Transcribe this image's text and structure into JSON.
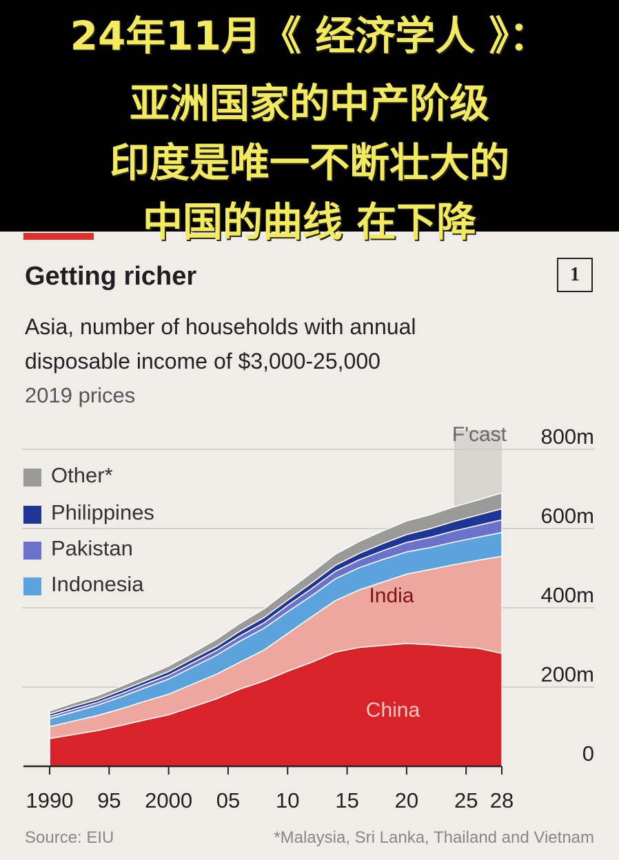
{
  "overlay": {
    "line1": "24年11月《 经济学人 》：",
    "line2": "亚洲国家的中产阶级",
    "line3": "印度是唯一不断壮大的",
    "line4": "中国的曲线   在下降"
  },
  "chart_number": "1",
  "source": "Source: EIU",
  "footnote": "*Malaysia, Sri Lanka, Thailand and Vietnam",
  "colors": {
    "china": "#d9232a",
    "india": "#eea79d",
    "indonesia": "#5aa3dc",
    "pakistan": "#6b72c9",
    "philippines": "#1f3596",
    "other": "#9a9a98",
    "forecast_band": "#d4d2cd",
    "accent_red": "#d9322f"
  },
  "chart_data": {
    "type": "area",
    "stacked": true,
    "title": "Getting richer",
    "subtitle_line1": "Asia, number of households with annual",
    "subtitle_line2": "disposable income of $3,000-25,000",
    "units": "2019 prices",
    "forecast_label": "F'cast",
    "forecast_start": 2024,
    "x": [
      1990,
      1992,
      1994,
      1996,
      1998,
      2000,
      2002,
      2004,
      2006,
      2008,
      2010,
      2012,
      2014,
      2016,
      2018,
      2020,
      2022,
      2024,
      2026,
      2028
    ],
    "xlim": [
      1990,
      2028
    ],
    "ylim": [
      0,
      800
    ],
    "x_ticks": [
      1990,
      1995,
      2000,
      2005,
      2010,
      2015,
      2020,
      2025,
      2028
    ],
    "x_tick_labels": [
      "1990",
      "95",
      "2000",
      "05",
      "10",
      "15",
      "20",
      "25",
      "28"
    ],
    "y_ticks": [
      0,
      200,
      400,
      600,
      800
    ],
    "y_tick_labels": [
      "0",
      "200m",
      "400m",
      "600m",
      "800m"
    ],
    "grid": true,
    "legend_position": "top-left",
    "legend": [
      "Other*",
      "Philippines",
      "Pakistan",
      "Indonesia"
    ],
    "series": [
      {
        "name": "China",
        "values": [
          70,
          80,
          90,
          103,
          117,
          130,
          150,
          170,
          195,
          215,
          240,
          262,
          288,
          300,
          305,
          310,
          307,
          302,
          298,
          285
        ]
      },
      {
        "name": "India",
        "values": [
          30,
          34,
          38,
          42,
          47,
          52,
          57,
          62,
          68,
          78,
          95,
          115,
          130,
          145,
          160,
          175,
          190,
          207,
          222,
          245
        ]
      },
      {
        "name": "Indonesia",
        "values": [
          20,
          23,
          26,
          30,
          34,
          38,
          43,
          48,
          53,
          55,
          55,
          53,
          55,
          56,
          57,
          56,
          55,
          57,
          58,
          60
        ]
      },
      {
        "name": "Pakistan",
        "values": [
          6,
          7,
          7,
          8,
          9,
          10,
          11,
          12,
          13,
          14,
          16,
          18,
          19,
          20,
          22,
          24,
          26,
          28,
          30,
          32
        ]
      },
      {
        "name": "Philippines",
        "values": [
          6,
          7,
          7,
          8,
          8,
          9,
          10,
          10,
          12,
          13,
          13,
          14,
          15,
          16,
          18,
          20,
          22,
          24,
          26,
          28
        ]
      },
      {
        "name": "Other*",
        "values": [
          8,
          9,
          10,
          11,
          12,
          14,
          15,
          18,
          20,
          22,
          24,
          26,
          28,
          30,
          32,
          34,
          35,
          37,
          38,
          40
        ]
      }
    ],
    "labels": {
      "india": "India",
      "china": "China"
    }
  }
}
